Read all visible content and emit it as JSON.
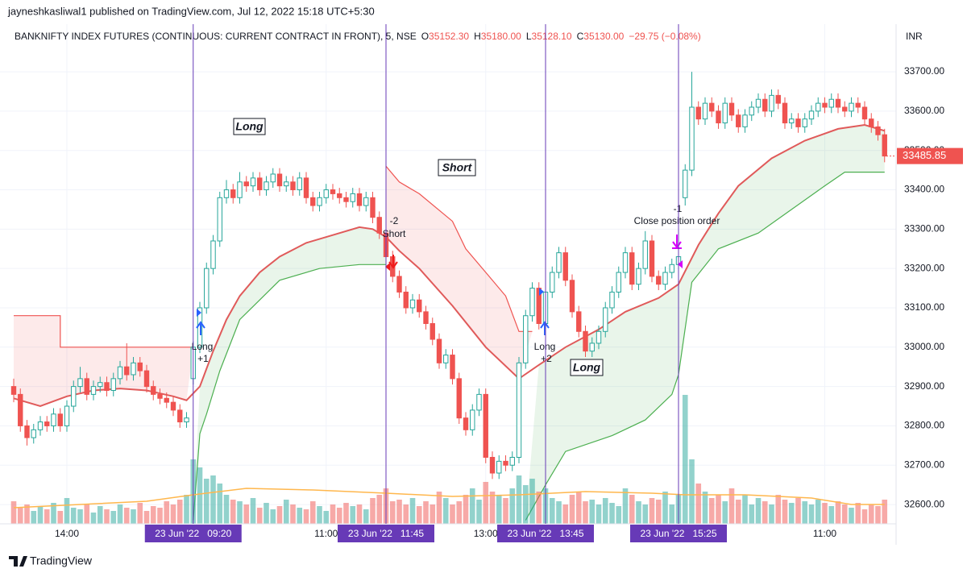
{
  "header": {
    "publisher": "jayneshkasliwal1 published on TradingView.com, Jul 12, 2022 15:18 UTC+5:30",
    "symbol": "BANKNIFTY INDEX FUTURES (CONTINUOUS: CURRENT CONTRACT IN FRONT), 5, NSE",
    "ohlc": [
      {
        "key": "O",
        "value": "35152.30"
      },
      {
        "key": "H",
        "value": "35180.00"
      },
      {
        "key": "L",
        "value": "35128.10"
      },
      {
        "key": "C",
        "value": "35130.00"
      }
    ],
    "change": "−29.75 (−0.08%)"
  },
  "annotations": [
    [
      "Long",
      "+1"
    ],
    [
      "-2",
      "Short"
    ],
    [
      "Long",
      "+2"
    ],
    [
      "-1",
      "Close position order"
    ]
  ],
  "boxes": [
    "Long",
    "Short",
    "Long"
  ],
  "footer": "TradingView",
  "chart_data": {
    "type": "candlestick",
    "currency": "INR",
    "ylim": [
      32551,
      33821
    ],
    "yticks": [
      {
        "value": 32600,
        "label": "32600.00"
      },
      {
        "value": 32700,
        "label": "32700.00"
      },
      {
        "value": 32800,
        "label": "32800.00"
      },
      {
        "value": 32900,
        "label": "32900.00"
      },
      {
        "value": 33000,
        "label": "33000.00"
      },
      {
        "value": 33100,
        "label": "33100.00"
      },
      {
        "value": 33200,
        "label": "33200.00"
      },
      {
        "value": 33300,
        "label": "33300.00"
      },
      {
        "value": 33400,
        "label": "33400.00"
      },
      {
        "value": 33500,
        "label": "33500.00"
      },
      {
        "value": 33600,
        "label": "33600.00"
      },
      {
        "value": 33700,
        "label": "33700.00"
      }
    ],
    "xticks": [
      {
        "value": 8,
        "label": "14:00"
      },
      {
        "value": 47,
        "label": "11:00"
      },
      {
        "value": 71,
        "label": "13:00"
      },
      {
        "value": 122,
        "label": "11:00"
      }
    ],
    "markers": [
      {
        "value": 27,
        "label": "23 Jun '22   09:20"
      },
      {
        "value": 56,
        "label": "23 Jun '22   11:45"
      },
      {
        "value": 80,
        "label": "23 Jun '22   13:45"
      },
      {
        "value": 100,
        "label": "23 Jun '22   15:25"
      }
    ],
    "marker_color": "#673ab7",
    "grid": true,
    "up_color": "#26a69a",
    "down_color": "#ef5350",
    "last_price": 33485.85,
    "candles": [
      [
        32900,
        32920,
        32860,
        32880
      ],
      [
        32880,
        32895,
        32785,
        32800
      ],
      [
        32800,
        32815,
        32750,
        32770
      ],
      [
        32770,
        32805,
        32755,
        32790
      ],
      [
        32790,
        32825,
        32775,
        32810
      ],
      [
        32810,
        32825,
        32785,
        32800
      ],
      [
        32800,
        32845,
        32785,
        32830
      ],
      [
        32830,
        32845,
        32785,
        32800
      ],
      [
        32800,
        32865,
        32785,
        32850
      ],
      [
        32850,
        32915,
        32835,
        32900
      ],
      [
        32900,
        32950,
        32885,
        32920
      ],
      [
        32920,
        32935,
        32865,
        32880
      ],
      [
        32880,
        32915,
        32865,
        32900
      ],
      [
        32900,
        32925,
        32885,
        32910
      ],
      [
        32910,
        32925,
        32875,
        32890
      ],
      [
        32890,
        32935,
        32875,
        32920
      ],
      [
        32920,
        32965,
        32905,
        32950
      ],
      [
        32950,
        33010,
        32915,
        32930
      ],
      [
        32930,
        32975,
        32915,
        32960
      ],
      [
        32960,
        32975,
        32925,
        32940
      ],
      [
        32940,
        32955,
        32885,
        32900
      ],
      [
        32900,
        32915,
        32865,
        32880
      ],
      [
        32880,
        32895,
        32855,
        32870
      ],
      [
        32870,
        32885,
        32845,
        32860
      ],
      [
        32860,
        32875,
        32825,
        32840
      ],
      [
        32840,
        32855,
        32795,
        32810
      ],
      [
        32810,
        32835,
        32795,
        32820
      ],
      [
        32920,
        33015,
        32905,
        33000
      ],
      [
        33000,
        33115,
        32985,
        33100
      ],
      [
        33100,
        33215,
        33085,
        33200
      ],
      [
        33200,
        33285,
        33185,
        33270
      ],
      [
        33270,
        33395,
        33255,
        33380
      ],
      [
        33380,
        33425,
        33365,
        33400
      ],
      [
        33400,
        33415,
        33365,
        33380
      ],
      [
        33380,
        33445,
        33365,
        33420
      ],
      [
        33420,
        33435,
        33395,
        33410
      ],
      [
        33410,
        33445,
        33395,
        33430
      ],
      [
        33430,
        33445,
        33385,
        33400
      ],
      [
        33400,
        33435,
        33385,
        33420
      ],
      [
        33420,
        33455,
        33405,
        33440
      ],
      [
        33440,
        33455,
        33395,
        33410
      ],
      [
        33410,
        33435,
        33395,
        33420
      ],
      [
        33420,
        33435,
        33385,
        33400
      ],
      [
        33400,
        33445,
        33385,
        33430
      ],
      [
        33430,
        33445,
        33365,
        33380
      ],
      [
        33380,
        33395,
        33345,
        33360
      ],
      [
        33360,
        33395,
        33345,
        33380
      ],
      [
        33380,
        33415,
        33365,
        33400
      ],
      [
        33400,
        33415,
        33375,
        33390
      ],
      [
        33390,
        33405,
        33365,
        33380
      ],
      [
        33380,
        33395,
        33355,
        33370
      ],
      [
        33370,
        33405,
        33355,
        33390
      ],
      [
        33390,
        33405,
        33345,
        33360
      ],
      [
        33360,
        33395,
        33345,
        33380
      ],
      [
        33380,
        33395,
        33315,
        33330
      ],
      [
        33330,
        33345,
        33275,
        33290
      ],
      [
        33290,
        33305,
        33215,
        33230
      ],
      [
        33230,
        33245,
        33165,
        33180
      ],
      [
        33180,
        33195,
        33125,
        33140
      ],
      [
        33140,
        33155,
        33085,
        33100
      ],
      [
        33100,
        33135,
        33085,
        33120
      ],
      [
        33120,
        33135,
        33075,
        33090
      ],
      [
        33090,
        33105,
        33045,
        33060
      ],
      [
        33060,
        33075,
        33005,
        33020
      ],
      [
        33020,
        33035,
        32945,
        32960
      ],
      [
        32960,
        32995,
        32945,
        32980
      ],
      [
        32980,
        32995,
        32905,
        32920
      ],
      [
        32920,
        32935,
        32805,
        32820
      ],
      [
        32820,
        32835,
        32775,
        32790
      ],
      [
        32790,
        32855,
        32775,
        32840
      ],
      [
        32840,
        32895,
        32825,
        32880
      ],
      [
        32880,
        32895,
        32705,
        32720
      ],
      [
        32720,
        32735,
        32665,
        32680
      ],
      [
        32680,
        32725,
        32665,
        32710
      ],
      [
        32710,
        32725,
        32685,
        32700
      ],
      [
        32700,
        32735,
        32685,
        32720
      ],
      [
        32720,
        32975,
        32705,
        32960
      ],
      [
        32960,
        33095,
        32945,
        33080
      ],
      [
        33080,
        33165,
        33065,
        33150
      ],
      [
        33150,
        33165,
        33045,
        33060
      ],
      [
        33060,
        33155,
        33045,
        33140
      ],
      [
        33140,
        33205,
        33125,
        33190
      ],
      [
        33190,
        33255,
        33175,
        33240
      ],
      [
        33240,
        33255,
        33155,
        33170
      ],
      [
        33170,
        33185,
        33075,
        33090
      ],
      [
        33090,
        33105,
        33025,
        33040
      ],
      [
        33040,
        33055,
        32975,
        32990
      ],
      [
        32990,
        33025,
        32975,
        33010
      ],
      [
        33010,
        33055,
        32995,
        33040
      ],
      [
        33040,
        33115,
        33025,
        33100
      ],
      [
        33100,
        33155,
        33085,
        33140
      ],
      [
        33140,
        33205,
        33125,
        33190
      ],
      [
        33190,
        33255,
        33175,
        33240
      ],
      [
        33240,
        33255,
        33145,
        33160
      ],
      [
        33160,
        33215,
        33145,
        33200
      ],
      [
        33200,
        33295,
        33185,
        33270
      ],
      [
        33270,
        33285,
        33165,
        33180
      ],
      [
        33180,
        33195,
        33145,
        33160
      ],
      [
        33160,
        33205,
        33145,
        33190
      ],
      [
        33190,
        33225,
        33175,
        33210
      ],
      [
        33210,
        33245,
        33195,
        33230
      ],
      [
        33380,
        33465,
        33360,
        33450
      ],
      [
        33450,
        33700,
        33435,
        33610
      ],
      [
        33610,
        33625,
        33565,
        33580
      ],
      [
        33580,
        33635,
        33565,
        33620
      ],
      [
        33620,
        33635,
        33585,
        33600
      ],
      [
        33600,
        33615,
        33555,
        33570
      ],
      [
        33570,
        33635,
        33555,
        33620
      ],
      [
        33620,
        33635,
        33575,
        33590
      ],
      [
        33590,
        33605,
        33545,
        33560
      ],
      [
        33560,
        33605,
        33545,
        33590
      ],
      [
        33590,
        33625,
        33575,
        33610
      ],
      [
        33610,
        33645,
        33595,
        33630
      ],
      [
        33630,
        33645,
        33585,
        33600
      ],
      [
        33600,
        33655,
        33585,
        33640
      ],
      [
        33640,
        33655,
        33605,
        33620
      ],
      [
        33620,
        33635,
        33555,
        33570
      ],
      [
        33570,
        33595,
        33555,
        33580
      ],
      [
        33580,
        33595,
        33545,
        33560
      ],
      [
        33560,
        33595,
        33545,
        33580
      ],
      [
        33580,
        33615,
        33565,
        33600
      ],
      [
        33600,
        33635,
        33585,
        33620
      ],
      [
        33620,
        33635,
        33595,
        33610
      ],
      [
        33610,
        33645,
        33595,
        33630
      ],
      [
        33630,
        33645,
        33595,
        33610
      ],
      [
        33610,
        33625,
        33585,
        33600
      ],
      [
        33600,
        33635,
        33585,
        33620
      ],
      [
        33620,
        33635,
        33595,
        33610
      ],
      [
        33610,
        33625,
        33565,
        33580
      ],
      [
        33580,
        33595,
        33545,
        33560
      ],
      [
        33560,
        33575,
        33525,
        33540
      ],
      [
        33540,
        33555,
        33470,
        33485.85
      ]
    ],
    "volume_lim": [
      0,
      100
    ],
    "volume": [
      14,
      10,
      12,
      8,
      11,
      9,
      13,
      8,
      16,
      10,
      9,
      12,
      7,
      11,
      9,
      8,
      12,
      10,
      9,
      13,
      8,
      11,
      10,
      14,
      12,
      15,
      18,
      40,
      35,
      28,
      30,
      25,
      18,
      15,
      14,
      12,
      16,
      10,
      13,
      9,
      11,
      15,
      12,
      10,
      9,
      14,
      11,
      8,
      12,
      10,
      13,
      11,
      12,
      9,
      16,
      18,
      22,
      14,
      15,
      12,
      16,
      11,
      14,
      12,
      20,
      16,
      12,
      14,
      18,
      22,
      15,
      26,
      20,
      18,
      16,
      22,
      30,
      24,
      28,
      20,
      22,
      16,
      14,
      12,
      18,
      20,
      14,
      15,
      12,
      16,
      13,
      11,
      22,
      18,
      14,
      12,
      16,
      15,
      20,
      12,
      18,
      80,
      40,
      25,
      20,
      16,
      18,
      14,
      22,
      15,
      18,
      12,
      16,
      14,
      12,
      18,
      15,
      13,
      16,
      14,
      12,
      15,
      13,
      11,
      14,
      12,
      10,
      13,
      9,
      12,
      11,
      15
    ],
    "volume_ma": {
      "color": "#ffb74d",
      "x": [
        0,
        10,
        20,
        27,
        35,
        45,
        56,
        66,
        76,
        86,
        96,
        101,
        110,
        120,
        126,
        131
      ],
      "values": [
        10,
        12,
        14,
        18,
        22,
        21,
        19,
        17,
        18,
        20,
        19,
        18,
        18,
        16,
        12,
        12
      ]
    },
    "ema": {
      "color": "#e05a5a",
      "x": [
        0,
        4,
        8,
        12,
        16,
        20,
        24,
        26,
        28,
        30,
        32,
        34,
        37,
        40,
        44,
        48,
        52,
        54,
        56,
        58,
        61,
        66,
        71,
        76,
        79,
        83,
        88,
        92,
        97,
        100,
        103,
        106,
        109,
        114,
        119,
        124,
        128,
        131
      ],
      "values": [
        32870,
        32850,
        32875,
        32890,
        32895,
        32890,
        32875,
        32865,
        32900,
        32990,
        33070,
        33130,
        33190,
        33230,
        33265,
        33285,
        33305,
        33300,
        33280,
        33245,
        33200,
        33105,
        33000,
        32920,
        32955,
        33000,
        33045,
        33090,
        33125,
        33160,
        33260,
        33340,
        33410,
        33480,
        33525,
        33555,
        33565,
        33550
      ]
    },
    "bands": [
      {
        "color": "#ef5350",
        "fill": "#ef5350",
        "x": [
          0,
          7,
          7,
          27
        ],
        "values": [
          33080,
          33080,
          33000,
          33000
        ]
      },
      {
        "color": "#ef5350",
        "fill": "#ef5350",
        "x": [
          56,
          58,
          61,
          66,
          68,
          71,
          74,
          76,
          78
        ],
        "values": [
          33460,
          33420,
          33390,
          33320,
          33250,
          33190,
          33130,
          33040,
          33040
        ]
      },
      {
        "color": "#4caf50",
        "fill": "#4caf50",
        "x": [
          27,
          28,
          29,
          31,
          34,
          37,
          40,
          46,
          52,
          56
        ],
        "values": [
          32560,
          32780,
          32830,
          32940,
          33070,
          33120,
          33170,
          33200,
          33210,
          33210
        ]
      },
      {
        "color": "#4caf50",
        "fill": "#4caf50",
        "x": [
          77,
          80,
          83,
          90,
          95,
          99,
          100,
          102,
          106,
          112,
          117,
          122,
          125,
          131
        ],
        "values": [
          32560,
          32650,
          32735,
          32775,
          32815,
          32880,
          32930,
          33165,
          33250,
          33290,
          33350,
          33410,
          33445,
          33445
        ]
      }
    ]
  }
}
